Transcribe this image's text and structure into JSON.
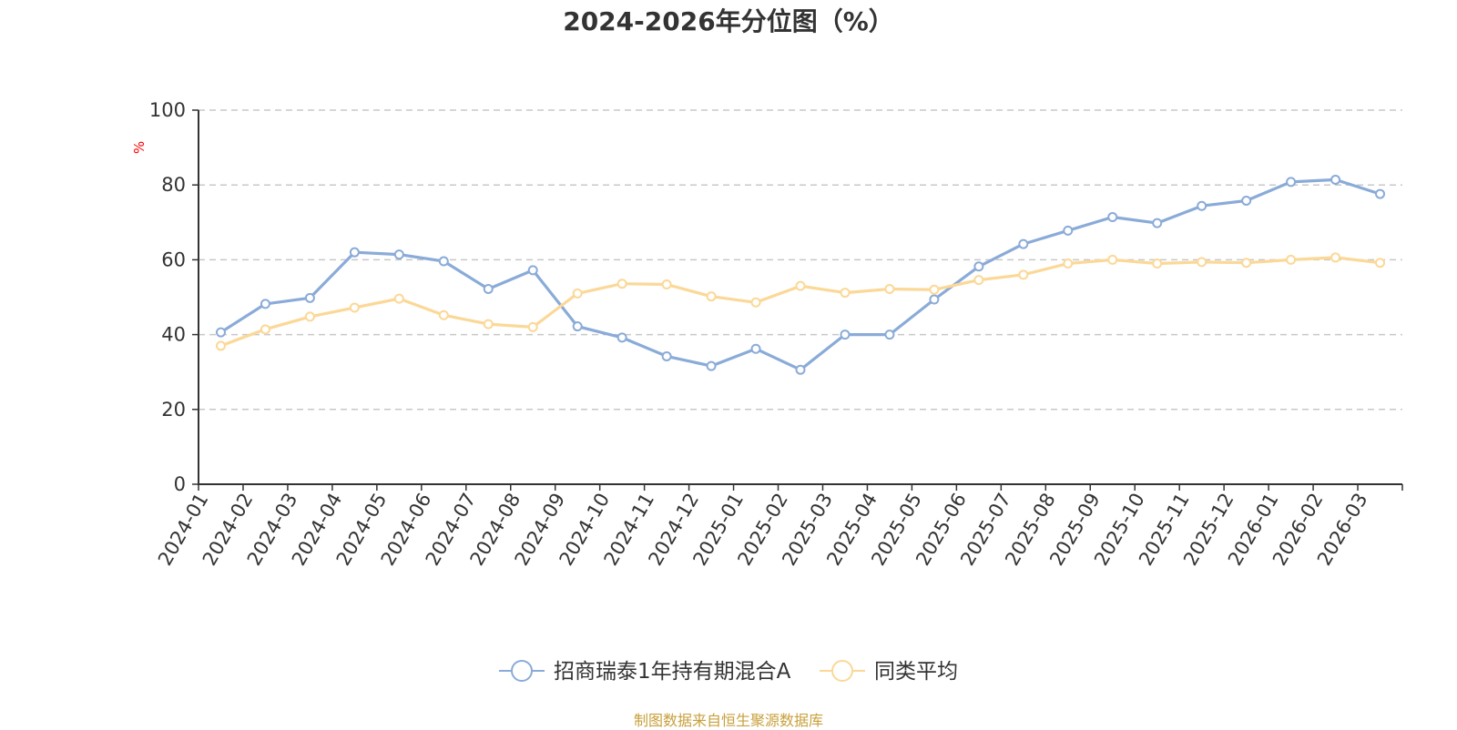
{
  "source_note": "制图数据来自恒生聚源数据库",
  "colors": {
    "series_0": "#8aabd8",
    "series_1": "#fbd897",
    "grid": "#c8c8c8",
    "axis": "#333333",
    "unit": "#ff0000"
  },
  "chart_data": {
    "type": "line",
    "title": "2024-2026年分位图（%）",
    "ylabel": "%",
    "ylim": [
      0,
      100
    ],
    "yticks": [
      "0",
      "20",
      "40",
      "60",
      "80",
      "100"
    ],
    "grid": true,
    "legend_position": "bottom",
    "categories": [
      "2024-01",
      "2024-02",
      "2024-03",
      "2024-04",
      "2024-05",
      "2024-06",
      "2024-07",
      "2024-08",
      "2024-09",
      "2024-10",
      "2024-11",
      "2024-12",
      "2025-01",
      "2025-02",
      "2025-03",
      "2025-04",
      "2025-05",
      "2025-06",
      "2025-07",
      "2025-08",
      "2025-09",
      "2025-10",
      "2025-11",
      "2025-12",
      "2026-01",
      "2026-02",
      "2026-03"
    ],
    "series": [
      {
        "name": "招商瑞泰1年持有期混合A",
        "values": [
          40.6,
          48.2,
          49.8,
          62.0,
          61.4,
          59.6,
          52.2,
          57.2,
          42.2,
          39.2,
          34.2,
          31.6,
          36.2,
          30.6,
          40.0,
          40.0,
          49.4,
          58.2,
          64.2,
          67.8,
          71.4,
          69.8,
          74.4,
          75.8,
          80.8,
          81.4,
          77.6
        ]
      },
      {
        "name": "同类平均",
        "values": [
          37.0,
          41.4,
          44.8,
          47.2,
          49.6,
          45.2,
          42.8,
          42.0,
          51.0,
          53.6,
          53.4,
          50.2,
          48.6,
          53.0,
          51.2,
          52.2,
          52.0,
          54.6,
          56.0,
          59.0,
          60.0,
          59.0,
          59.4,
          59.2,
          60.0,
          60.6,
          59.2
        ]
      }
    ]
  }
}
